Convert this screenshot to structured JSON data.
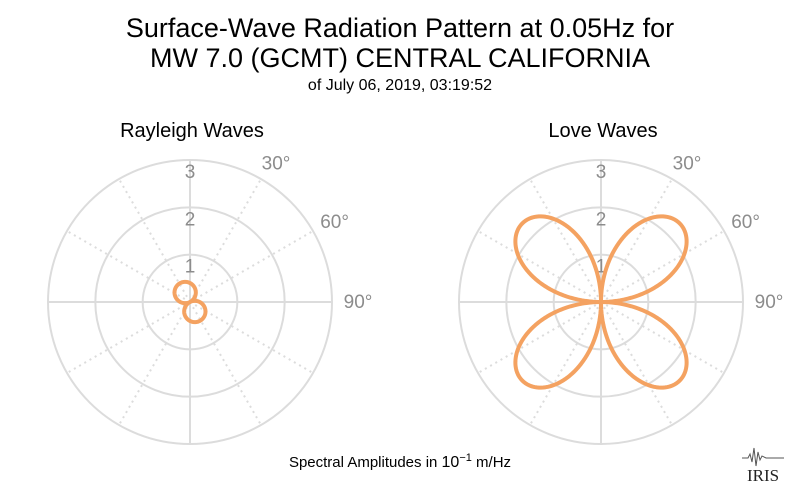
{
  "title": {
    "line1": "Surface-Wave Radiation Pattern at 0.05Hz for",
    "line2": "MW 7.0 (GCMT) CENTRAL CALIFORNIA",
    "subtitle": "of July 06, 2019, 03:19:52"
  },
  "footer": {
    "prefix": "Spectral Amplitudes in ",
    "base": "10",
    "exponent": "−1",
    "unit": " m/Hz"
  },
  "logo": {
    "text": "IRIS"
  },
  "colors": {
    "curve": "#f4a261",
    "grid": "#dcdcdc",
    "tick_text": "#8c8c8c"
  },
  "chart_data": [
    {
      "type": "polar-line",
      "title": "Rayleigh Waves",
      "radial_ticks": [
        "1",
        "2",
        "3"
      ],
      "radial_range": [
        0,
        3
      ],
      "angular_ticks": [
        "30°",
        "60°",
        "90°"
      ],
      "angle_direction": "clockwise",
      "zero_angle": "north",
      "pattern": {
        "kind": "two-lobe",
        "peak_amplitude": 0.45,
        "lobe_axis_deg": 153
      },
      "grid": true
    },
    {
      "type": "polar-line",
      "title": "Love Waves",
      "radial_ticks": [
        "1",
        "2",
        "3"
      ],
      "radial_range": [
        0,
        3
      ],
      "angular_ticks": [
        "30°",
        "60°",
        "90°"
      ],
      "angle_direction": "clockwise",
      "zero_angle": "north",
      "pattern": {
        "kind": "four-lobe",
        "peak_amplitude": 2.35,
        "lobe_angles_deg": [
          35,
          145,
          215,
          325
        ]
      },
      "grid": true
    }
  ]
}
